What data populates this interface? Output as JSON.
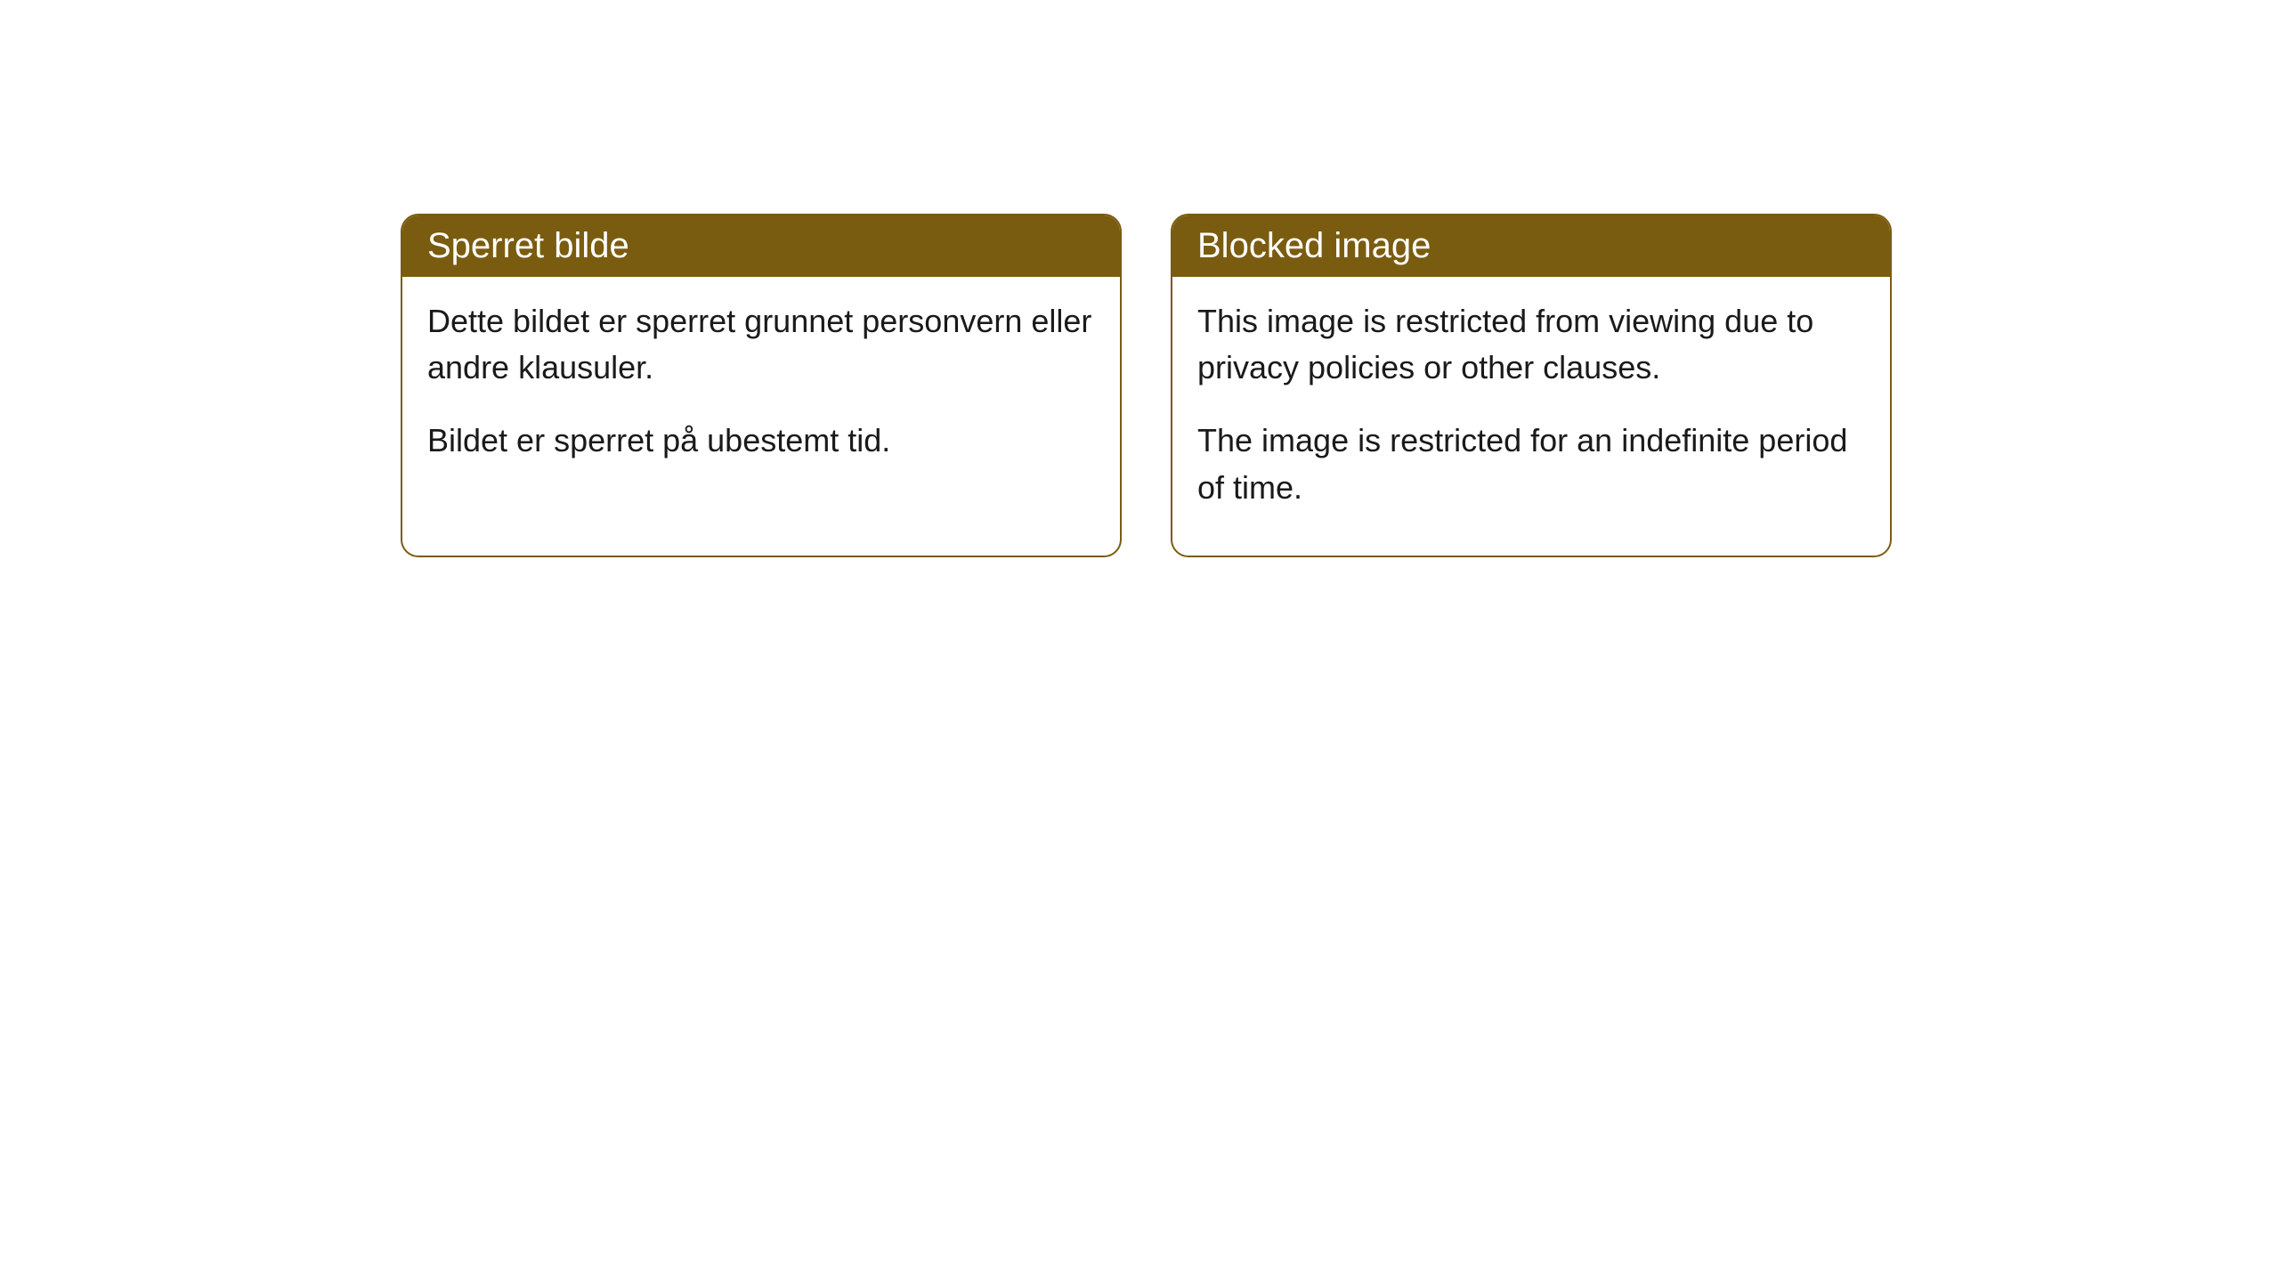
{
  "cards": [
    {
      "title": "Sperret bilde",
      "paragraph1": "Dette bildet er sperret grunnet personvern eller andre klausuler.",
      "paragraph2": "Bildet er sperret på ubestemt tid."
    },
    {
      "title": "Blocked image",
      "paragraph1": "This image is restricted from viewing due to privacy policies or other clauses.",
      "paragraph2": "The image is restricted for an indefinite period of time."
    }
  ],
  "styling": {
    "header_bg_color": "#7a5c11",
    "header_text_color": "#ffffff",
    "body_text_color": "#1a1a1a",
    "card_border_color": "#7a5c11",
    "card_bg_color": "#ffffff",
    "page_bg_color": "#ffffff",
    "border_radius": 20,
    "border_width": 2,
    "header_fontsize": 40,
    "body_fontsize": 36
  }
}
